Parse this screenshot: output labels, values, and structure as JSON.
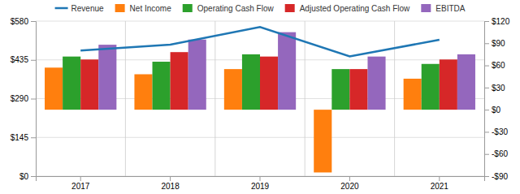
{
  "chart_data": {
    "type": "bar",
    "categories": [
      "2017",
      "2018",
      "2019",
      "2020",
      "2021"
    ],
    "series": [
      {
        "name": "Revenue",
        "type": "line",
        "values": [
          470,
          492,
          558,
          448,
          510
        ]
      },
      {
        "name": "Net Income",
        "type": "bar",
        "axis": "y2",
        "values": [
          57,
          48,
          55,
          -85,
          42
        ]
      },
      {
        "name": "Operating Cash Flow",
        "type": "bar",
        "axis": "y2",
        "values": [
          72,
          65,
          75,
          55,
          62
        ]
      },
      {
        "name": "Adjusted Operating Cash Flow",
        "type": "bar",
        "axis": "y2",
        "values": [
          68,
          78,
          72,
          55,
          68
        ]
      },
      {
        "name": "EBITDA",
        "type": "bar",
        "axis": "y2",
        "values": [
          88,
          95,
          105,
          72,
          75
        ]
      }
    ],
    "ylim": [
      0,
      580
    ],
    "yticks": [
      {
        "value": 0,
        "label": "$0"
      },
      {
        "value": 145,
        "label": "$145"
      },
      {
        "value": 290,
        "label": "$290"
      },
      {
        "value": 435,
        "label": "$435"
      },
      {
        "value": 580,
        "label": "$580"
      }
    ],
    "y2lim": [
      -90,
      120
    ],
    "y2ticks": [
      {
        "value": -90,
        "label": "-$90"
      },
      {
        "value": -60,
        "label": "-$60"
      },
      {
        "value": -30,
        "label": "-$30"
      },
      {
        "value": 0,
        "label": "$0"
      },
      {
        "value": 30,
        "label": "$30"
      },
      {
        "value": 60,
        "label": "$60"
      },
      {
        "value": 90,
        "label": "$90"
      },
      {
        "value": 120,
        "label": "$120"
      }
    ],
    "grid": true,
    "legend": "top"
  }
}
